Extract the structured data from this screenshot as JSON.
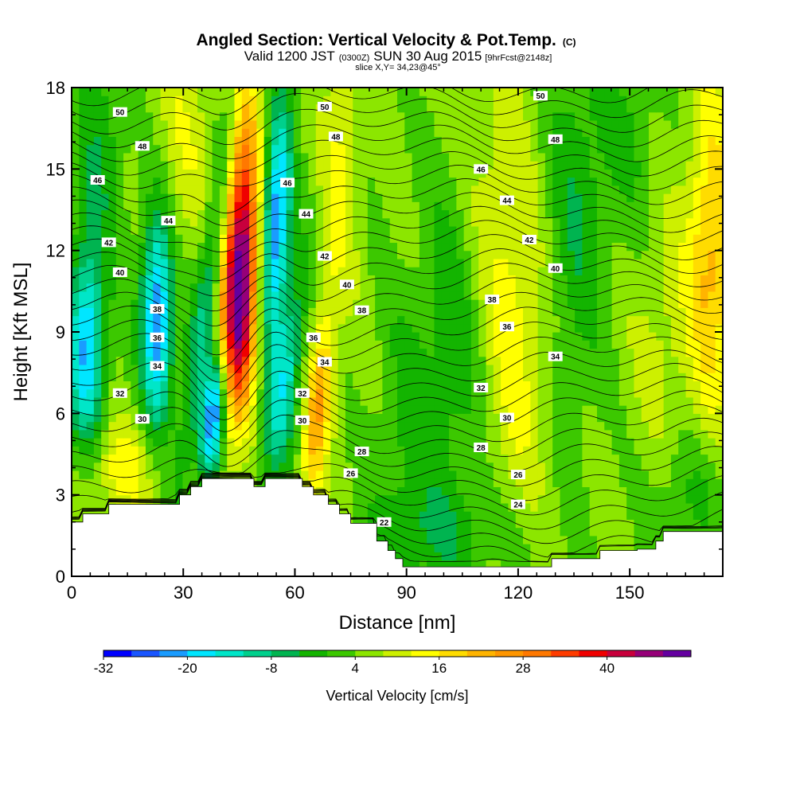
{
  "header": {
    "title_main": "Angled Section: Vertical Velocity & Pot.Temp.",
    "title_unit": "(C)",
    "valid_pre": "Valid 1200 JST",
    "valid_z": "(0300Z)",
    "valid_date": "SUN 30 Aug 2015",
    "valid_fcst": "[9hrFcst@2148z]",
    "slice": "slice X,Y= 34,23@45°"
  },
  "chart_data": {
    "type": "heatmap",
    "xlabel": "Distance [nm]",
    "ylabel": "Height [Kft MSL]",
    "xlim": [
      0,
      175
    ],
    "ylim": [
      0,
      18
    ],
    "x_ticks": [
      0,
      30,
      60,
      90,
      120,
      150
    ],
    "y_ticks": [
      0,
      3,
      6,
      9,
      12,
      15,
      18
    ],
    "colorbar": {
      "label": "Vertical Velocity [cm/s]",
      "tick_labels": [
        "-32",
        "-20",
        "-8",
        "4",
        "16",
        "28",
        "40"
      ],
      "tick_values": [
        -32,
        -20,
        -8,
        4,
        16,
        28,
        40
      ],
      "bins": [
        -32,
        -28,
        -24,
        -20,
        -16,
        -12,
        -8,
        -4,
        0,
        4,
        8,
        12,
        16,
        20,
        24,
        28,
        32,
        36,
        40,
        44,
        48
      ],
      "colors": [
        "#0000ff",
        "#1a56ff",
        "#1a9cff",
        "#00e6ff",
        "#00e6c8",
        "#00d08c",
        "#00b450",
        "#13b400",
        "#3cc800",
        "#8ce600",
        "#cdf000",
        "#ffff00",
        "#ffdc00",
        "#ffb400",
        "#ff9600",
        "#ff7800",
        "#ff3c00",
        "#f00000",
        "#c8003c",
        "#960078",
        "#6400a0"
      ]
    },
    "vertical_velocity_features": [
      {
        "x": 4,
        "y": 8.3,
        "peak": -22
      },
      {
        "x": 23,
        "y": 9.5,
        "peak": -26
      },
      {
        "x": 39,
        "y": 5.5,
        "peak": -28
      },
      {
        "x": 45,
        "y": 9.8,
        "peak": 44
      },
      {
        "x": 55,
        "y": 13,
        "peak": -26
      },
      {
        "x": 67,
        "y": 5.6,
        "peak": 22
      },
      {
        "x": 103,
        "y": 9,
        "peak": 0
      },
      {
        "x": 120,
        "y": 8,
        "peak": 12
      }
    ],
    "theta_contour_labels": [
      {
        "value": "50",
        "x": 13,
        "y": 17.1
      },
      {
        "value": "48",
        "x": 19,
        "y": 15.85
      },
      {
        "value": "46",
        "x": 7,
        "y": 14.6
      },
      {
        "value": "44",
        "x": 26,
        "y": 13.1
      },
      {
        "value": "42",
        "x": 10,
        "y": 12.3
      },
      {
        "value": "40",
        "x": 13,
        "y": 11.2
      },
      {
        "value": "38",
        "x": 23,
        "y": 9.85
      },
      {
        "value": "36",
        "x": 23,
        "y": 8.8
      },
      {
        "value": "34",
        "x": 23,
        "y": 7.75
      },
      {
        "value": "32",
        "x": 13,
        "y": 6.75
      },
      {
        "value": "30",
        "x": 19,
        "y": 5.8
      },
      {
        "value": "50",
        "x": 68,
        "y": 17.3
      },
      {
        "value": "48",
        "x": 71,
        "y": 16.2
      },
      {
        "value": "46",
        "x": 58,
        "y": 14.5
      },
      {
        "value": "44",
        "x": 63,
        "y": 13.35
      },
      {
        "value": "42",
        "x": 68,
        "y": 11.8
      },
      {
        "value": "40",
        "x": 74,
        "y": 10.75
      },
      {
        "value": "38",
        "x": 78,
        "y": 9.8
      },
      {
        "value": "36",
        "x": 65,
        "y": 8.8
      },
      {
        "value": "34",
        "x": 68,
        "y": 7.9
      },
      {
        "value": "32",
        "x": 62,
        "y": 6.75
      },
      {
        "value": "30",
        "x": 62,
        "y": 5.75
      },
      {
        "value": "28",
        "x": 78,
        "y": 4.6
      },
      {
        "value": "26",
        "x": 75,
        "y": 3.8
      },
      {
        "value": "22",
        "x": 84,
        "y": 2.0
      },
      {
        "value": "50",
        "x": 126,
        "y": 17.7
      },
      {
        "value": "48",
        "x": 130,
        "y": 16.1
      },
      {
        "value": "46",
        "x": 110,
        "y": 15.0
      },
      {
        "value": "44",
        "x": 117,
        "y": 13.85
      },
      {
        "value": "42",
        "x": 123,
        "y": 12.4
      },
      {
        "value": "40",
        "x": 130,
        "y": 11.35
      },
      {
        "value": "38",
        "x": 113,
        "y": 10.2
      },
      {
        "value": "36",
        "x": 117,
        "y": 9.2
      },
      {
        "value": "34",
        "x": 130,
        "y": 8.1
      },
      {
        "value": "32",
        "x": 110,
        "y": 6.95
      },
      {
        "value": "30",
        "x": 117,
        "y": 5.85
      },
      {
        "value": "28",
        "x": 110,
        "y": 4.75
      },
      {
        "value": "26",
        "x": 120,
        "y": 3.75
      },
      {
        "value": "24",
        "x": 120,
        "y": 2.65
      }
    ],
    "terrain_top": [
      [
        0,
        2.0
      ],
      [
        3,
        2.0
      ],
      [
        3,
        2.3
      ],
      [
        10,
        2.3
      ],
      [
        10,
        2.65
      ],
      [
        29,
        2.65
      ],
      [
        29,
        3.0
      ],
      [
        32,
        3.0
      ],
      [
        32,
        3.3
      ],
      [
        35,
        3.3
      ],
      [
        35,
        3.6
      ],
      [
        49,
        3.6
      ],
      [
        49,
        3.3
      ],
      [
        52,
        3.3
      ],
      [
        52,
        3.6
      ],
      [
        62,
        3.6
      ],
      [
        62,
        3.3
      ],
      [
        65,
        3.3
      ],
      [
        65,
        3.0
      ],
      [
        69,
        3.0
      ],
      [
        69,
        2.65
      ],
      [
        72,
        2.65
      ],
      [
        72,
        2.3
      ],
      [
        75,
        2.3
      ],
      [
        75,
        1.95
      ],
      [
        82,
        1.95
      ],
      [
        82,
        1.3
      ],
      [
        85,
        1.3
      ],
      [
        85,
        0.95
      ],
      [
        87,
        0.95
      ],
      [
        87,
        0.65
      ],
      [
        89,
        0.65
      ],
      [
        89,
        0.35
      ],
      [
        104,
        0.35
      ],
      [
        104,
        0.35
      ],
      [
        129,
        0.35
      ],
      [
        129,
        0.65
      ],
      [
        142,
        0.65
      ],
      [
        142,
        0.95
      ],
      [
        152,
        0.95
      ],
      [
        152,
        1.0
      ],
      [
        153,
        1.0
      ],
      [
        153,
        1.0
      ],
      [
        157,
        1.0
      ],
      [
        157,
        1.3
      ],
      [
        159,
        1.3
      ],
      [
        159,
        1.65
      ],
      [
        175,
        1.65
      ]
    ]
  }
}
